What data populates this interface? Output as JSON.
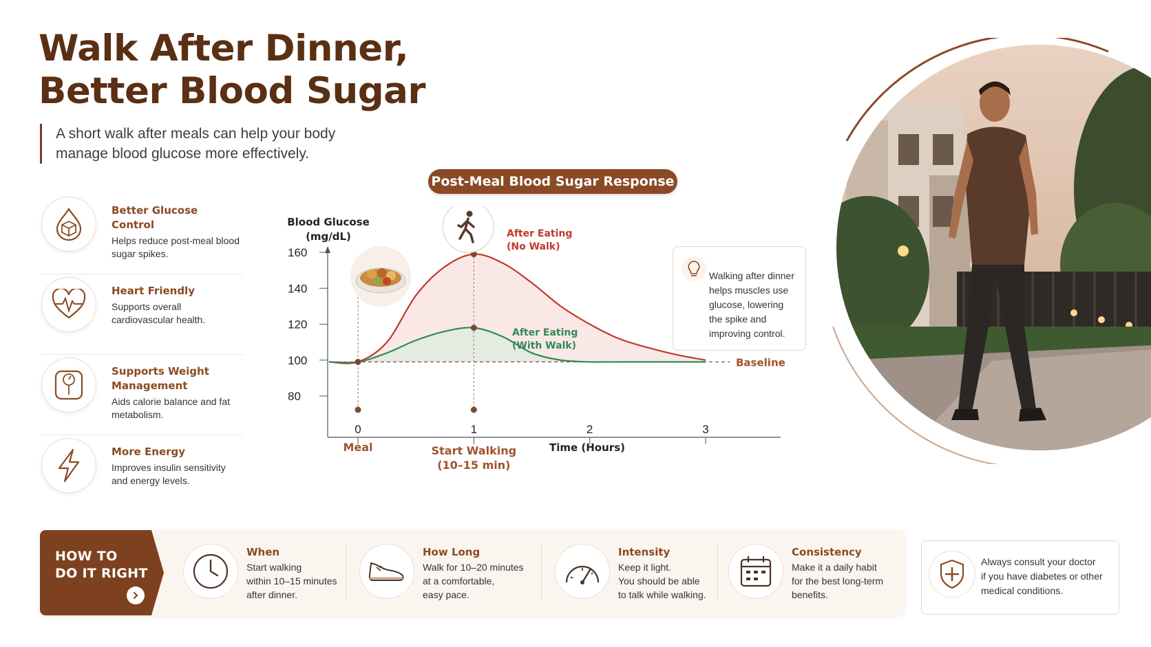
{
  "header": {
    "title_line1": "Walk After Dinner,",
    "title_line2": "Better Blood Sugar",
    "subtitle_line1": "A short walk after meals can help your body",
    "subtitle_line2": "manage blood glucose more effectively."
  },
  "benefits": [
    {
      "title": "Better Glucose Control",
      "desc": "Helps reduce post-meal blood sugar spikes.",
      "icon": "glucose-drop-icon"
    },
    {
      "title": "Heart Friendly",
      "desc": "Supports overall cardiovascular health.",
      "icon": "heart-pulse-icon"
    },
    {
      "title": "Supports Weight Management",
      "desc": "Aids calorie balance and fat metabolism.",
      "icon": "weight-scale-icon"
    },
    {
      "title": "More Energy",
      "desc": "Improves insulin sensitivity and energy levels.",
      "icon": "lightning-icon"
    }
  ],
  "chart_data": {
    "type": "line",
    "title": "Post-Meal Blood Sugar Response",
    "ylabel_line1": "Blood Glucose",
    "ylabel_line2": "(mg/dL)",
    "xlabel": "Time (Hours)",
    "xlim": [
      0,
      3
    ],
    "ylim": [
      75,
      170
    ],
    "yticks": [
      80,
      100,
      120,
      140,
      160
    ],
    "xticks": [
      0,
      1,
      2,
      3
    ],
    "series": [
      {
        "name_line1": "After Eating",
        "name_line2": "(No Walk)",
        "color": "#c0392b",
        "x": [
          -0.25,
          0,
          0.25,
          0.5,
          0.75,
          1,
          1.25,
          1.5,
          1.75,
          2,
          2.25,
          2.5,
          2.75,
          3
        ],
        "y": [
          99,
          99,
          110,
          136,
          152,
          159,
          154,
          143,
          130,
          120,
          112,
          107,
          103,
          100
        ]
      },
      {
        "name_line1": "After Eating",
        "name_line2": "(With Walk)",
        "color": "#2e8b57",
        "x": [
          -0.25,
          0,
          0.25,
          0.5,
          0.75,
          1,
          1.25,
          1.5,
          1.75,
          2,
          2.25,
          2.5,
          2.75,
          3
        ],
        "y": [
          99,
          99,
          104,
          111,
          116,
          118,
          113,
          104,
          100,
          99,
          99,
          99,
          99,
          99
        ]
      }
    ],
    "baseline": {
      "value": 99,
      "label": "Baseline"
    },
    "markers": [
      {
        "x": 0,
        "label": "Meal"
      },
      {
        "x": 1,
        "label_line1": "Start Walking",
        "label_line2": "(10–15 min)"
      }
    ],
    "colors": {
      "accent": "#8b4a26",
      "axis": "#555555",
      "label": "#a0522d"
    }
  },
  "chart_note": {
    "text_line1": "Walking after dinner",
    "text_line2": "helps muscles use",
    "text_line3": "glucose, lowering",
    "text_line4": "the spike and",
    "text_line5": "improving control."
  },
  "howto": {
    "tag_line1": "HOW TO",
    "tag_line2": "DO IT RIGHT",
    "steps": [
      {
        "title": "When",
        "desc_line1": "Start walking",
        "desc_line2": "within 10–15 minutes",
        "desc_line3": "after dinner.",
        "icon": "clock-icon"
      },
      {
        "title": "How Long",
        "desc_line1": "Walk for 10–20 minutes",
        "desc_line2": "at a comfortable,",
        "desc_line3": "easy pace.",
        "icon": "shoe-icon"
      },
      {
        "title": "Intensity",
        "desc_line1": "Keep it light.",
        "desc_line2": "You should be able",
        "desc_line3": "to talk while walking.",
        "icon": "gauge-icon"
      },
      {
        "title": "Consistency",
        "desc_line1": "Make it a daily habit",
        "desc_line2": "for the best long-term",
        "desc_line3": "benefits.",
        "icon": "calendar-icon"
      }
    ]
  },
  "consult": {
    "text_line1": "Always consult your doctor",
    "text_line2": "if you have diabetes or other",
    "text_line3": "medical conditions."
  }
}
